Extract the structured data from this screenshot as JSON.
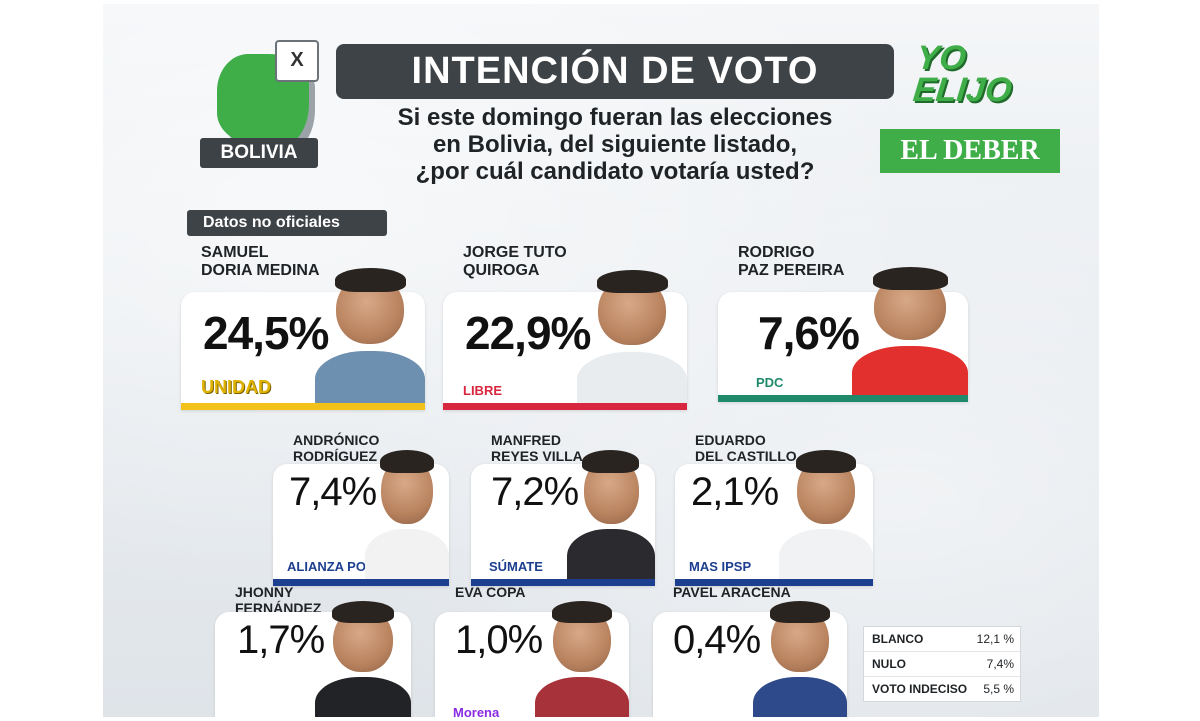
{
  "header": {
    "country_tag": "BOLIVIA",
    "ballot_mark": "X",
    "title": "INTENCIÓN DE VOTO",
    "question_line1": "Si este domingo fueran las elecciones",
    "question_line2": "en Bolivia, del siguiente listado,",
    "question_line3": "¿por cuál candidato votaría usted?",
    "brand_line1": "YO",
    "brand_line2": "ELIJO",
    "publisher": "EL DEBER",
    "note": "Datos no oficiales"
  },
  "chart_data": {
    "type": "table",
    "unit": "%",
    "candidates": [
      {
        "name_line1": "SAMUEL",
        "name_line2": "DORIA MEDINA",
        "value": 24.5,
        "label": "24,5%",
        "party": "UNIDAD",
        "color": "#f2c21b"
      },
      {
        "name_line1": "JORGE TUTO",
        "name_line2": "QUIROGA",
        "value": 22.9,
        "label": "22,9%",
        "party": "LIBRE",
        "color": "#d7263d"
      },
      {
        "name_line1": "RODRIGO",
        "name_line2": "PAZ PEREIRA",
        "value": 7.6,
        "label": "7,6%",
        "party": "PDC",
        "color": "#1f8a6b"
      },
      {
        "name_line1": "ANDRÓNICO",
        "name_line2": "RODRÍGUEZ",
        "value": 7.4,
        "label": "7,4%",
        "party": "ALIANZA POPULAR",
        "color": "#1d3f8f"
      },
      {
        "name_line1": "MANFRED",
        "name_line2": "REYES VILLA",
        "value": 7.2,
        "label": "7,2%",
        "party": "SÚMATE",
        "color": "#1d3f8f"
      },
      {
        "name_line1": "EDUARDO",
        "name_line2": "DEL CASTILLO",
        "value": 2.1,
        "label": "2,1%",
        "party": "MAS IPSP",
        "color": "#1d3f8f"
      },
      {
        "name_line1": "JHONNY",
        "name_line2": "FERNÁNDEZ",
        "value": 1.7,
        "label": "1,7%",
        "party": "",
        "color": "#2aa0d8"
      },
      {
        "name_line1": "EVA COPA",
        "name_line2": "",
        "value": 1.0,
        "label": "1,0%",
        "party": "Morena",
        "color": "#8a2be2"
      },
      {
        "name_line1": "PAVEL ARACENA",
        "name_line2": "",
        "value": 0.4,
        "label": "0,4%",
        "party": "",
        "color": "#d7263d"
      }
    ],
    "others": [
      {
        "label": "BLANCO",
        "value": 12.1,
        "display": "12,1 %"
      },
      {
        "label": "NULO",
        "value": 7.4,
        "display": "7,4%"
      },
      {
        "label": "VOTO INDECISO",
        "value": 5.5,
        "display": "5,5 %"
      }
    ]
  }
}
